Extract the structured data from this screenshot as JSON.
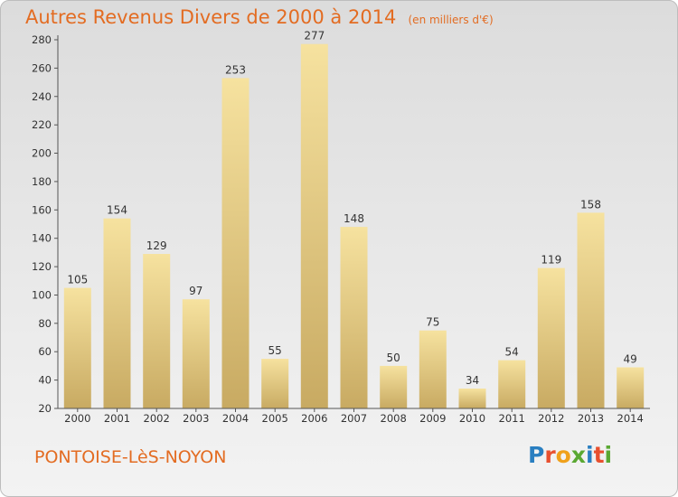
{
  "title": "Autres Revenus Divers de 2000 à 2014",
  "unit_note": "(en milliers d'€)",
  "commune": "PONTOISE-LèS-NOYON",
  "logo": {
    "letters": [
      {
        "ch": "P",
        "color": "#2a7fc1"
      },
      {
        "ch": "r",
        "color": "#e8502f"
      },
      {
        "ch": "o",
        "color": "#f0a11b"
      },
      {
        "ch": "x",
        "color": "#5aa832"
      },
      {
        "ch": "i",
        "color": "#2a7fc1"
      },
      {
        "ch": "t",
        "color": "#e8502f"
      },
      {
        "ch": "i",
        "color": "#5aa832"
      }
    ]
  },
  "colors": {
    "title": "#e36c22",
    "bar_light": "#f6e29f",
    "bar_dark": "#c8aa62"
  },
  "chart_data": {
    "type": "bar",
    "categories": [
      "2000",
      "2001",
      "2002",
      "2003",
      "2004",
      "2005",
      "2006",
      "2007",
      "2008",
      "2009",
      "2010",
      "2011",
      "2012",
      "2013",
      "2014"
    ],
    "values": [
      105,
      154,
      129,
      97,
      253,
      55,
      277,
      148,
      50,
      75,
      34,
      54,
      119,
      158,
      49
    ],
    "yticks": [
      20,
      40,
      60,
      80,
      100,
      120,
      140,
      160,
      180,
      200,
      220,
      240,
      260,
      280
    ],
    "ylim": [
      20,
      280
    ],
    "grid": false
  }
}
